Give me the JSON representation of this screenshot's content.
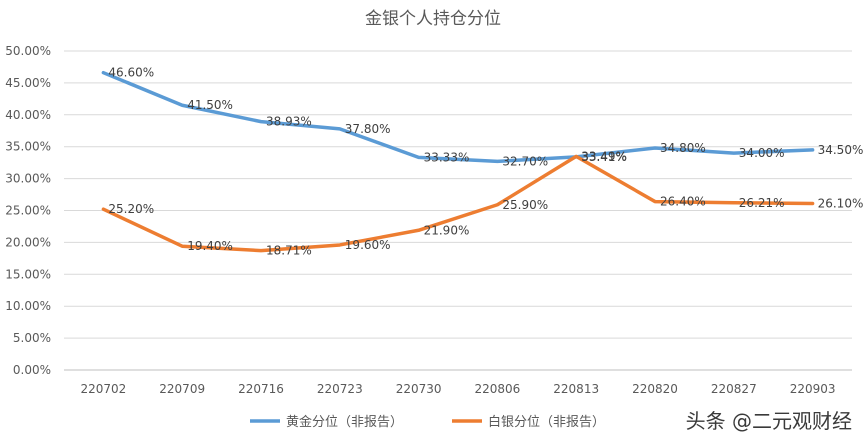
{
  "watermark": "头条 @二元观财经",
  "chart_data": {
    "type": "line",
    "title": "金银个人持仓分位",
    "xlabel": "",
    "ylabel": "",
    "categories": [
      "220702",
      "220709",
      "220716",
      "220723",
      "220730",
      "220806",
      "220813",
      "220820",
      "220827",
      "220903"
    ],
    "y_ticks": [
      "0.00%",
      "5.00%",
      "10.00%",
      "15.00%",
      "20.00%",
      "25.00%",
      "30.00%",
      "35.00%",
      "40.00%",
      "45.00%",
      "50.00%"
    ],
    "ylim": [
      0,
      50
    ],
    "grid": true,
    "legend_position": "bottom",
    "series": [
      {
        "name": "黄金分位（非报告）",
        "color": "#5B9BD5",
        "values": [
          46.6,
          41.5,
          38.93,
          37.8,
          33.33,
          32.7,
          33.41,
          34.8,
          34.0,
          34.5
        ],
        "labels": [
          "46.60%",
          "41.50%",
          "38.93%",
          "37.80%",
          "33.33%",
          "32.70%",
          "33.41%",
          "34.80%",
          "34.00%",
          "34.50%"
        ]
      },
      {
        "name": "白银分位（非报告）",
        "color": "#ED7D31",
        "values": [
          25.2,
          19.4,
          18.71,
          19.6,
          21.9,
          25.9,
          33.49,
          26.4,
          26.21,
          26.1
        ],
        "labels": [
          "25.20%",
          "19.40%",
          "18.71%",
          "19.60%",
          "21.90%",
          "25.90%",
          "33.49%",
          "26.40%",
          "26.21%",
          "26.10%"
        ]
      }
    ]
  }
}
